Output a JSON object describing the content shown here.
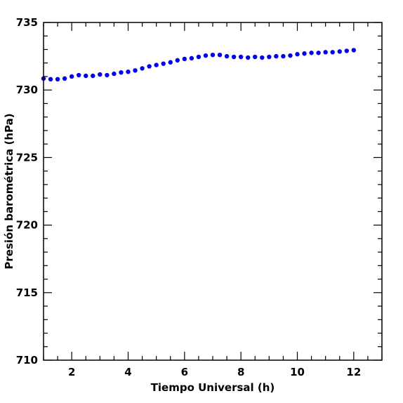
{
  "chart_data": {
    "type": "scatter",
    "xlabel": "Tiempo Universal (h)",
    "ylabel": "Presión barométrica (hPa)",
    "xlim": [
      1,
      13
    ],
    "ylim": [
      710,
      735
    ],
    "x_ticks": [
      "2",
      "4",
      "6",
      "8",
      "10",
      "12"
    ],
    "y_ticks": [
      "710",
      "715",
      "720",
      "725",
      "730",
      "735"
    ],
    "grid": false,
    "series": [
      {
        "color": "#0000ee",
        "x": [
          1.0,
          1.25,
          1.5,
          1.75,
          2.0,
          2.25,
          2.5,
          2.75,
          3.0,
          3.25,
          3.5,
          3.75,
          4.0,
          4.25,
          4.5,
          4.75,
          5.0,
          5.25,
          5.5,
          5.75,
          6.0,
          6.25,
          6.5,
          6.75,
          7.0,
          7.25,
          7.5,
          7.75,
          8.0,
          8.25,
          8.5,
          8.75,
          9.0,
          9.25,
          9.5,
          9.75,
          10.0,
          10.25,
          10.5,
          10.75,
          11.0,
          11.25,
          11.5,
          11.75,
          12.0
        ],
        "y": [
          730.85,
          730.8,
          730.8,
          730.85,
          731.0,
          731.1,
          731.05,
          731.05,
          731.15,
          731.1,
          731.2,
          731.3,
          731.35,
          731.45,
          731.6,
          731.75,
          731.85,
          731.95,
          732.05,
          732.2,
          732.3,
          732.35,
          732.45,
          732.55,
          732.6,
          732.6,
          732.5,
          732.45,
          732.45,
          732.4,
          732.45,
          732.4,
          732.45,
          732.5,
          732.5,
          732.55,
          732.65,
          732.7,
          732.75,
          732.75,
          732.8,
          732.8,
          732.85,
          732.9,
          732.95
        ]
      }
    ]
  }
}
